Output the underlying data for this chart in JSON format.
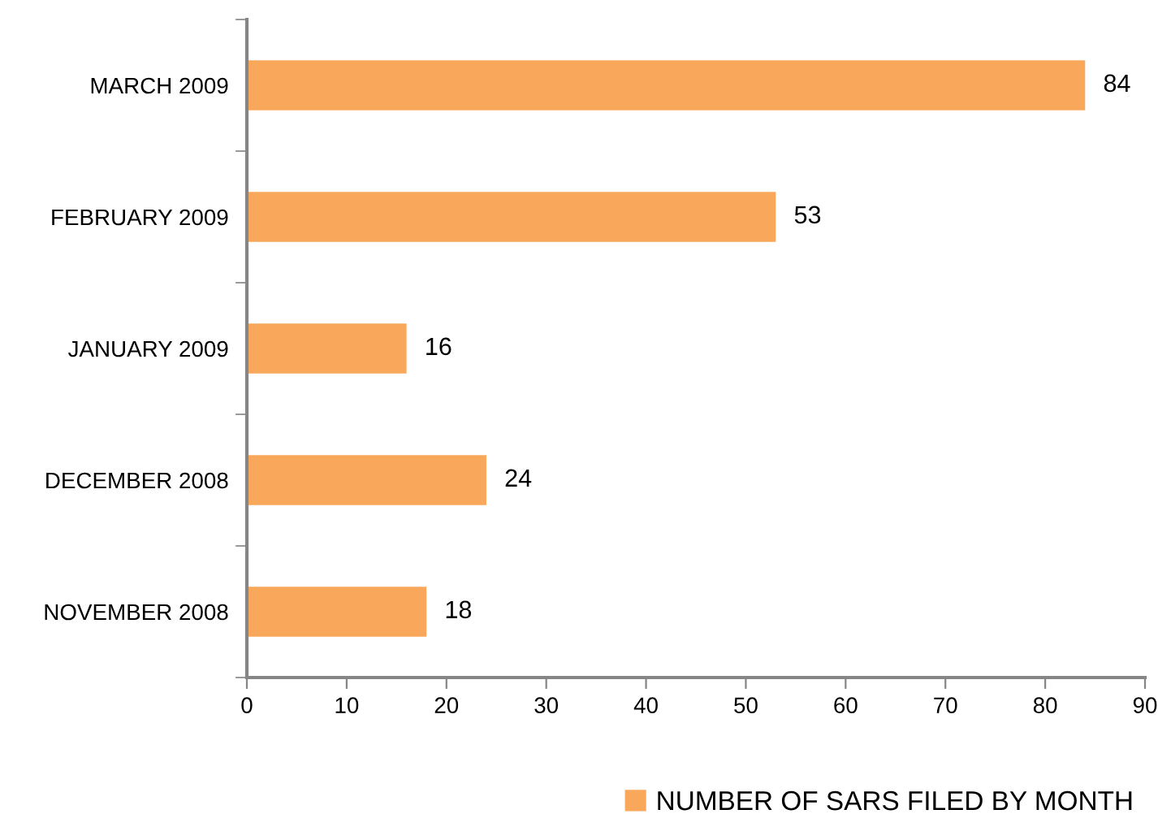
{
  "chart_data": {
    "type": "bar",
    "orientation": "horizontal",
    "categories": [
      "MARCH 2009",
      "FEBRUARY 2009",
      "JANUARY 2009",
      "DECEMBER 2008",
      "NOVEMBER 2008"
    ],
    "series": [
      {
        "name": "NUMBER OF SARS FILED BY MONTH",
        "color": "#f9a85b",
        "values": [
          84,
          53,
          16,
          24,
          18
        ]
      }
    ],
    "xlim": [
      0,
      90
    ],
    "xticks": [
      0,
      10,
      20,
      30,
      40,
      50,
      60,
      70,
      80,
      90
    ],
    "data_labels": true,
    "legend": "bottom right",
    "grid": false
  }
}
